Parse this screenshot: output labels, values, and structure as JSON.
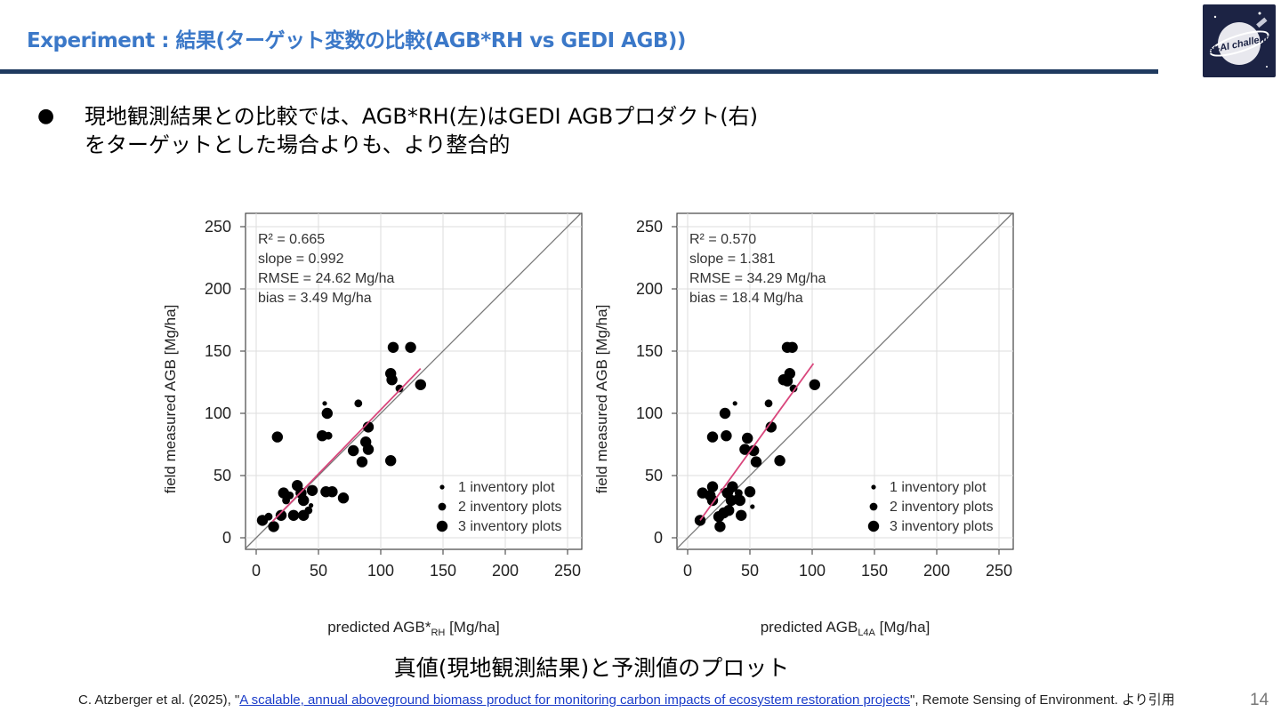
{
  "slide": {
    "title": "Experiment : 結果(ターゲット変数の比較(AGB*RH vs GEDI AGB))",
    "bullet_symbol": "●",
    "bullet_line1": "現地観測結果との比較では、AGB*RH(左)はGEDI AGBプロダクト(右)",
    "bullet_line2": "をターゲットとした場合よりも、より整合的",
    "caption": "真値(現地観測結果)と予測値のプロット",
    "citation_prefix": "C. Atzberger et al. (2025), \"",
    "citation_link": "A scalable, annual aboveground biomass product for monitoring carbon impacts of ecosystem restoration projects",
    "citation_suffix": "\", Remote Sensing of Environment. より引用",
    "page_number": "14",
    "logo_text": "Sat-AI challenge",
    "colors": {
      "title": "#3b78c8",
      "rule": "#1f3a5f",
      "logo_bg": "#1c2344",
      "fit_line": "#d9467c"
    }
  },
  "chart_data": [
    {
      "type": "scatter",
      "xlabel_main": "predicted AGB*",
      "xlabel_sub": "RH",
      "xlabel_tail": " [Mg/ha]",
      "ylabel": "field measured AGB [Mg/ha]",
      "xlim": [
        0,
        250
      ],
      "ylim": [
        0,
        250
      ],
      "xticks": [
        "0",
        "50",
        "100",
        "150",
        "200",
        "250"
      ],
      "yticks": [
        "0",
        "50",
        "100",
        "150",
        "200",
        "250"
      ],
      "grid": true,
      "stats": [
        "R² = 0.665",
        "slope = 0.992",
        "RMSE = 24.62 Mg/ha",
        "bias = 3.49 Mg/ha"
      ],
      "legend": [
        "1 inventory plot",
        "2 inventory plots",
        "3 inventory plots"
      ],
      "legend_position": "bottom-right",
      "one_to_one_line": true,
      "fit_line": {
        "x": [
          13,
          132
        ],
        "y": [
          13,
          136
        ]
      },
      "points": [
        {
          "x": 5,
          "y": 14,
          "n": 3
        },
        {
          "x": 10,
          "y": 17,
          "n": 2
        },
        {
          "x": 14,
          "y": 9,
          "n": 3
        },
        {
          "x": 17,
          "y": 81,
          "n": 3
        },
        {
          "x": 20,
          "y": 18,
          "n": 3
        },
        {
          "x": 22,
          "y": 36,
          "n": 3
        },
        {
          "x": 24,
          "y": 30,
          "n": 2
        },
        {
          "x": 27,
          "y": 34,
          "n": 2
        },
        {
          "x": 30,
          "y": 18,
          "n": 3
        },
        {
          "x": 33,
          "y": 42,
          "n": 3
        },
        {
          "x": 36,
          "y": 36,
          "n": 3
        },
        {
          "x": 38,
          "y": 30,
          "n": 3
        },
        {
          "x": 38,
          "y": 18,
          "n": 3
        },
        {
          "x": 42,
          "y": 22,
          "n": 2
        },
        {
          "x": 44,
          "y": 26,
          "n": 1
        },
        {
          "x": 45,
          "y": 38,
          "n": 3
        },
        {
          "x": 53,
          "y": 82,
          "n": 3
        },
        {
          "x": 55,
          "y": 108,
          "n": 1
        },
        {
          "x": 56,
          "y": 37,
          "n": 3
        },
        {
          "x": 57,
          "y": 100,
          "n": 3
        },
        {
          "x": 58,
          "y": 82,
          "n": 2
        },
        {
          "x": 61,
          "y": 37,
          "n": 3
        },
        {
          "x": 70,
          "y": 32,
          "n": 3
        },
        {
          "x": 78,
          "y": 70,
          "n": 3
        },
        {
          "x": 82,
          "y": 108,
          "n": 2
        },
        {
          "x": 85,
          "y": 61,
          "n": 3
        },
        {
          "x": 88,
          "y": 77,
          "n": 3
        },
        {
          "x": 90,
          "y": 89,
          "n": 3
        },
        {
          "x": 90,
          "y": 71,
          "n": 3
        },
        {
          "x": 108,
          "y": 62,
          "n": 3
        },
        {
          "x": 108,
          "y": 132,
          "n": 3
        },
        {
          "x": 109,
          "y": 127,
          "n": 3
        },
        {
          "x": 110,
          "y": 153,
          "n": 3
        },
        {
          "x": 115,
          "y": 120,
          "n": 2
        },
        {
          "x": 124,
          "y": 153,
          "n": 3
        },
        {
          "x": 132,
          "y": 123,
          "n": 3
        }
      ]
    },
    {
      "type": "scatter",
      "xlabel_main": "predicted AGB",
      "xlabel_sub": "L4A",
      "xlabel_tail": " [Mg/ha]",
      "ylabel": "field measured AGB [Mg/ha]",
      "xlim": [
        0,
        250
      ],
      "ylim": [
        0,
        250
      ],
      "xticks": [
        "0",
        "50",
        "100",
        "150",
        "200",
        "250"
      ],
      "yticks": [
        "0",
        "50",
        "100",
        "150",
        "200",
        "250"
      ],
      "grid": true,
      "stats": [
        "R² = 0.570",
        "slope = 1.381",
        "RMSE = 34.29 Mg/ha",
        "bias = 18.4 Mg/ha"
      ],
      "legend": [
        "1 inventory plot",
        "2 inventory plots",
        "3 inventory plots"
      ],
      "legend_position": "bottom-right",
      "one_to_one_line": true,
      "fit_line": {
        "x": [
          10,
          101
        ],
        "y": [
          14,
          140
        ]
      },
      "points": [
        {
          "x": 10,
          "y": 14,
          "n": 3
        },
        {
          "x": 12,
          "y": 36,
          "n": 3
        },
        {
          "x": 18,
          "y": 34,
          "n": 3
        },
        {
          "x": 20,
          "y": 41,
          "n": 3
        },
        {
          "x": 20,
          "y": 30,
          "n": 3
        },
        {
          "x": 20,
          "y": 81,
          "n": 3
        },
        {
          "x": 25,
          "y": 17,
          "n": 3
        },
        {
          "x": 26,
          "y": 9,
          "n": 3
        },
        {
          "x": 28,
          "y": 38,
          "n": 1
        },
        {
          "x": 29,
          "y": 20,
          "n": 3
        },
        {
          "x": 30,
          "y": 100,
          "n": 3
        },
        {
          "x": 31,
          "y": 82,
          "n": 3
        },
        {
          "x": 32,
          "y": 36,
          "n": 3
        },
        {
          "x": 33,
          "y": 22,
          "n": 3
        },
        {
          "x": 35,
          "y": 30,
          "n": 3
        },
        {
          "x": 36,
          "y": 41,
          "n": 3
        },
        {
          "x": 38,
          "y": 108,
          "n": 1
        },
        {
          "x": 40,
          "y": 32,
          "n": 2
        },
        {
          "x": 41,
          "y": 36,
          "n": 2
        },
        {
          "x": 42,
          "y": 30,
          "n": 3
        },
        {
          "x": 43,
          "y": 18,
          "n": 3
        },
        {
          "x": 46,
          "y": 71,
          "n": 3
        },
        {
          "x": 48,
          "y": 80,
          "n": 3
        },
        {
          "x": 50,
          "y": 37,
          "n": 3
        },
        {
          "x": 52,
          "y": 25,
          "n": 1
        },
        {
          "x": 53,
          "y": 70,
          "n": 3
        },
        {
          "x": 55,
          "y": 61,
          "n": 3
        },
        {
          "x": 65,
          "y": 108,
          "n": 2
        },
        {
          "x": 67,
          "y": 89,
          "n": 3
        },
        {
          "x": 74,
          "y": 62,
          "n": 3
        },
        {
          "x": 77,
          "y": 127,
          "n": 3
        },
        {
          "x": 80,
          "y": 153,
          "n": 3
        },
        {
          "x": 80,
          "y": 126,
          "n": 3
        },
        {
          "x": 82,
          "y": 132,
          "n": 3
        },
        {
          "x": 84,
          "y": 153,
          "n": 3
        },
        {
          "x": 85,
          "y": 120,
          "n": 2
        },
        {
          "x": 102,
          "y": 123,
          "n": 3
        }
      ]
    }
  ]
}
